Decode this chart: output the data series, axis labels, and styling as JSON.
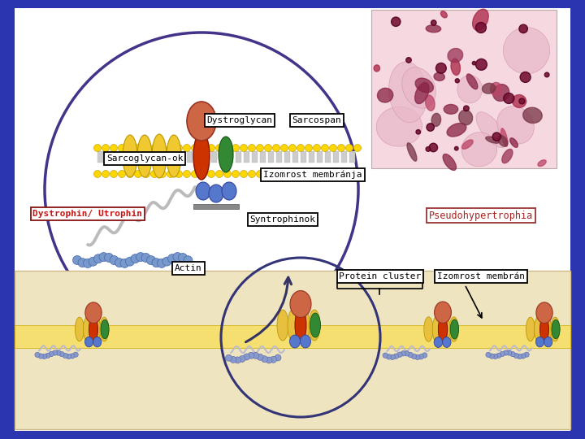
{
  "bg_color": "#2B35B0",
  "slide_color": "#FFFFFF",
  "labels": {
    "dystroglycan": "Dystroglycan",
    "sarcospan": "Sarcospan",
    "sarcoglycan": "Sarcoglycan-ok",
    "izomrost_membra": "Izomrost membránja",
    "dystrophin": "Dystrophin/ Utrophin",
    "pseudohyp": "Pseudohypertrophia",
    "syntrophinok": "Syntrophinok",
    "actin": "Actin",
    "protein_cluster": "Protein cluster",
    "izomrost_membran": "Izomrost membrán"
  },
  "micro_bg": "#F5D8E0",
  "bottom_bg": "#EFE4C0",
  "membrane_color": "#F5DD60",
  "yellow_protein": "#F0C830",
  "red_protein": "#CC3300",
  "top_bulb": "#CC6644",
  "green_protein": "#338833",
  "blue_protein": "#5577CC",
  "rope_color": "#BBBBBB",
  "actin_color": "#7799CC",
  "circle_edge": "#443388"
}
